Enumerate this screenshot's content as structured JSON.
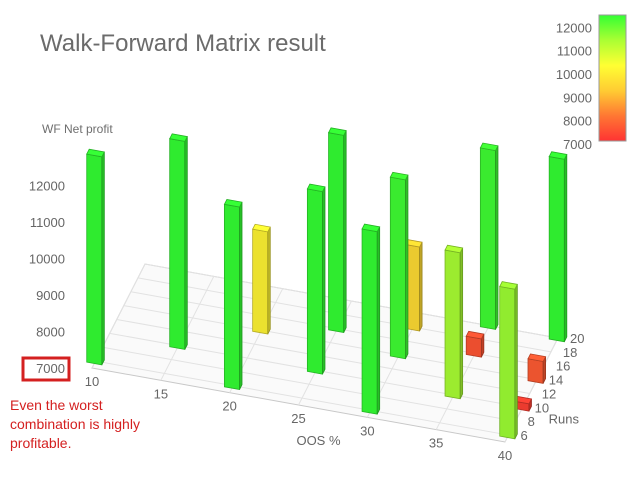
{
  "chart_data": {
    "type": "bar",
    "title": "Walk-Forward Matrix result",
    "zlabel": "WF Net profit",
    "xlabel": "OOS %",
    "ylabel": "Runs",
    "x_ticks": [
      10,
      15,
      20,
      25,
      30,
      35,
      40
    ],
    "y_ticks": [
      6,
      8,
      10,
      12,
      14,
      16,
      18,
      20
    ],
    "z_ticks": [
      7000,
      8000,
      9000,
      10000,
      11000,
      12000
    ],
    "color_scale": {
      "ticks": [
        12000,
        11000,
        10000,
        9000,
        8000,
        7000
      ],
      "stops": [
        "#33ff33",
        "#aaff33",
        "#ffff33",
        "#ffcc33",
        "#ff7733",
        "#ff3333"
      ]
    },
    "grid": true,
    "bars": [
      {
        "oos": 10,
        "runs": 6,
        "profit": 12700
      },
      {
        "oos": 15,
        "runs": 10,
        "profit": 12700
      },
      {
        "oos": 20,
        "runs": 6,
        "profit": 12000
      },
      {
        "oos": 20,
        "runs": 14,
        "profit": 9800
      },
      {
        "oos": 25,
        "runs": 10,
        "profit": 12000
      },
      {
        "oos": 25,
        "runs": 16,
        "profit": 12400
      },
      {
        "oos": 30,
        "runs": 6,
        "profit": 12000
      },
      {
        "oos": 30,
        "runs": 14,
        "profit": 11900
      },
      {
        "oos": 30,
        "runs": 18,
        "profit": 9300
      },
      {
        "oos": 35,
        "runs": 10,
        "profit": 11000
      },
      {
        "oos": 35,
        "runs": 16,
        "profit": 7500
      },
      {
        "oos": 35,
        "runs": 20,
        "profit": 11900
      },
      {
        "oos": 40,
        "runs": 6,
        "profit": 11100
      },
      {
        "oos": 40,
        "runs": 10,
        "profit": 7200
      },
      {
        "oos": 40,
        "runs": 14,
        "profit": 7600
      },
      {
        "oos": 40,
        "runs": 20,
        "profit": 12000
      }
    ]
  },
  "annotation": {
    "text": "Even the worst combination is highly profitable.",
    "color": "#d42020",
    "highlighted_tick": 7000
  }
}
